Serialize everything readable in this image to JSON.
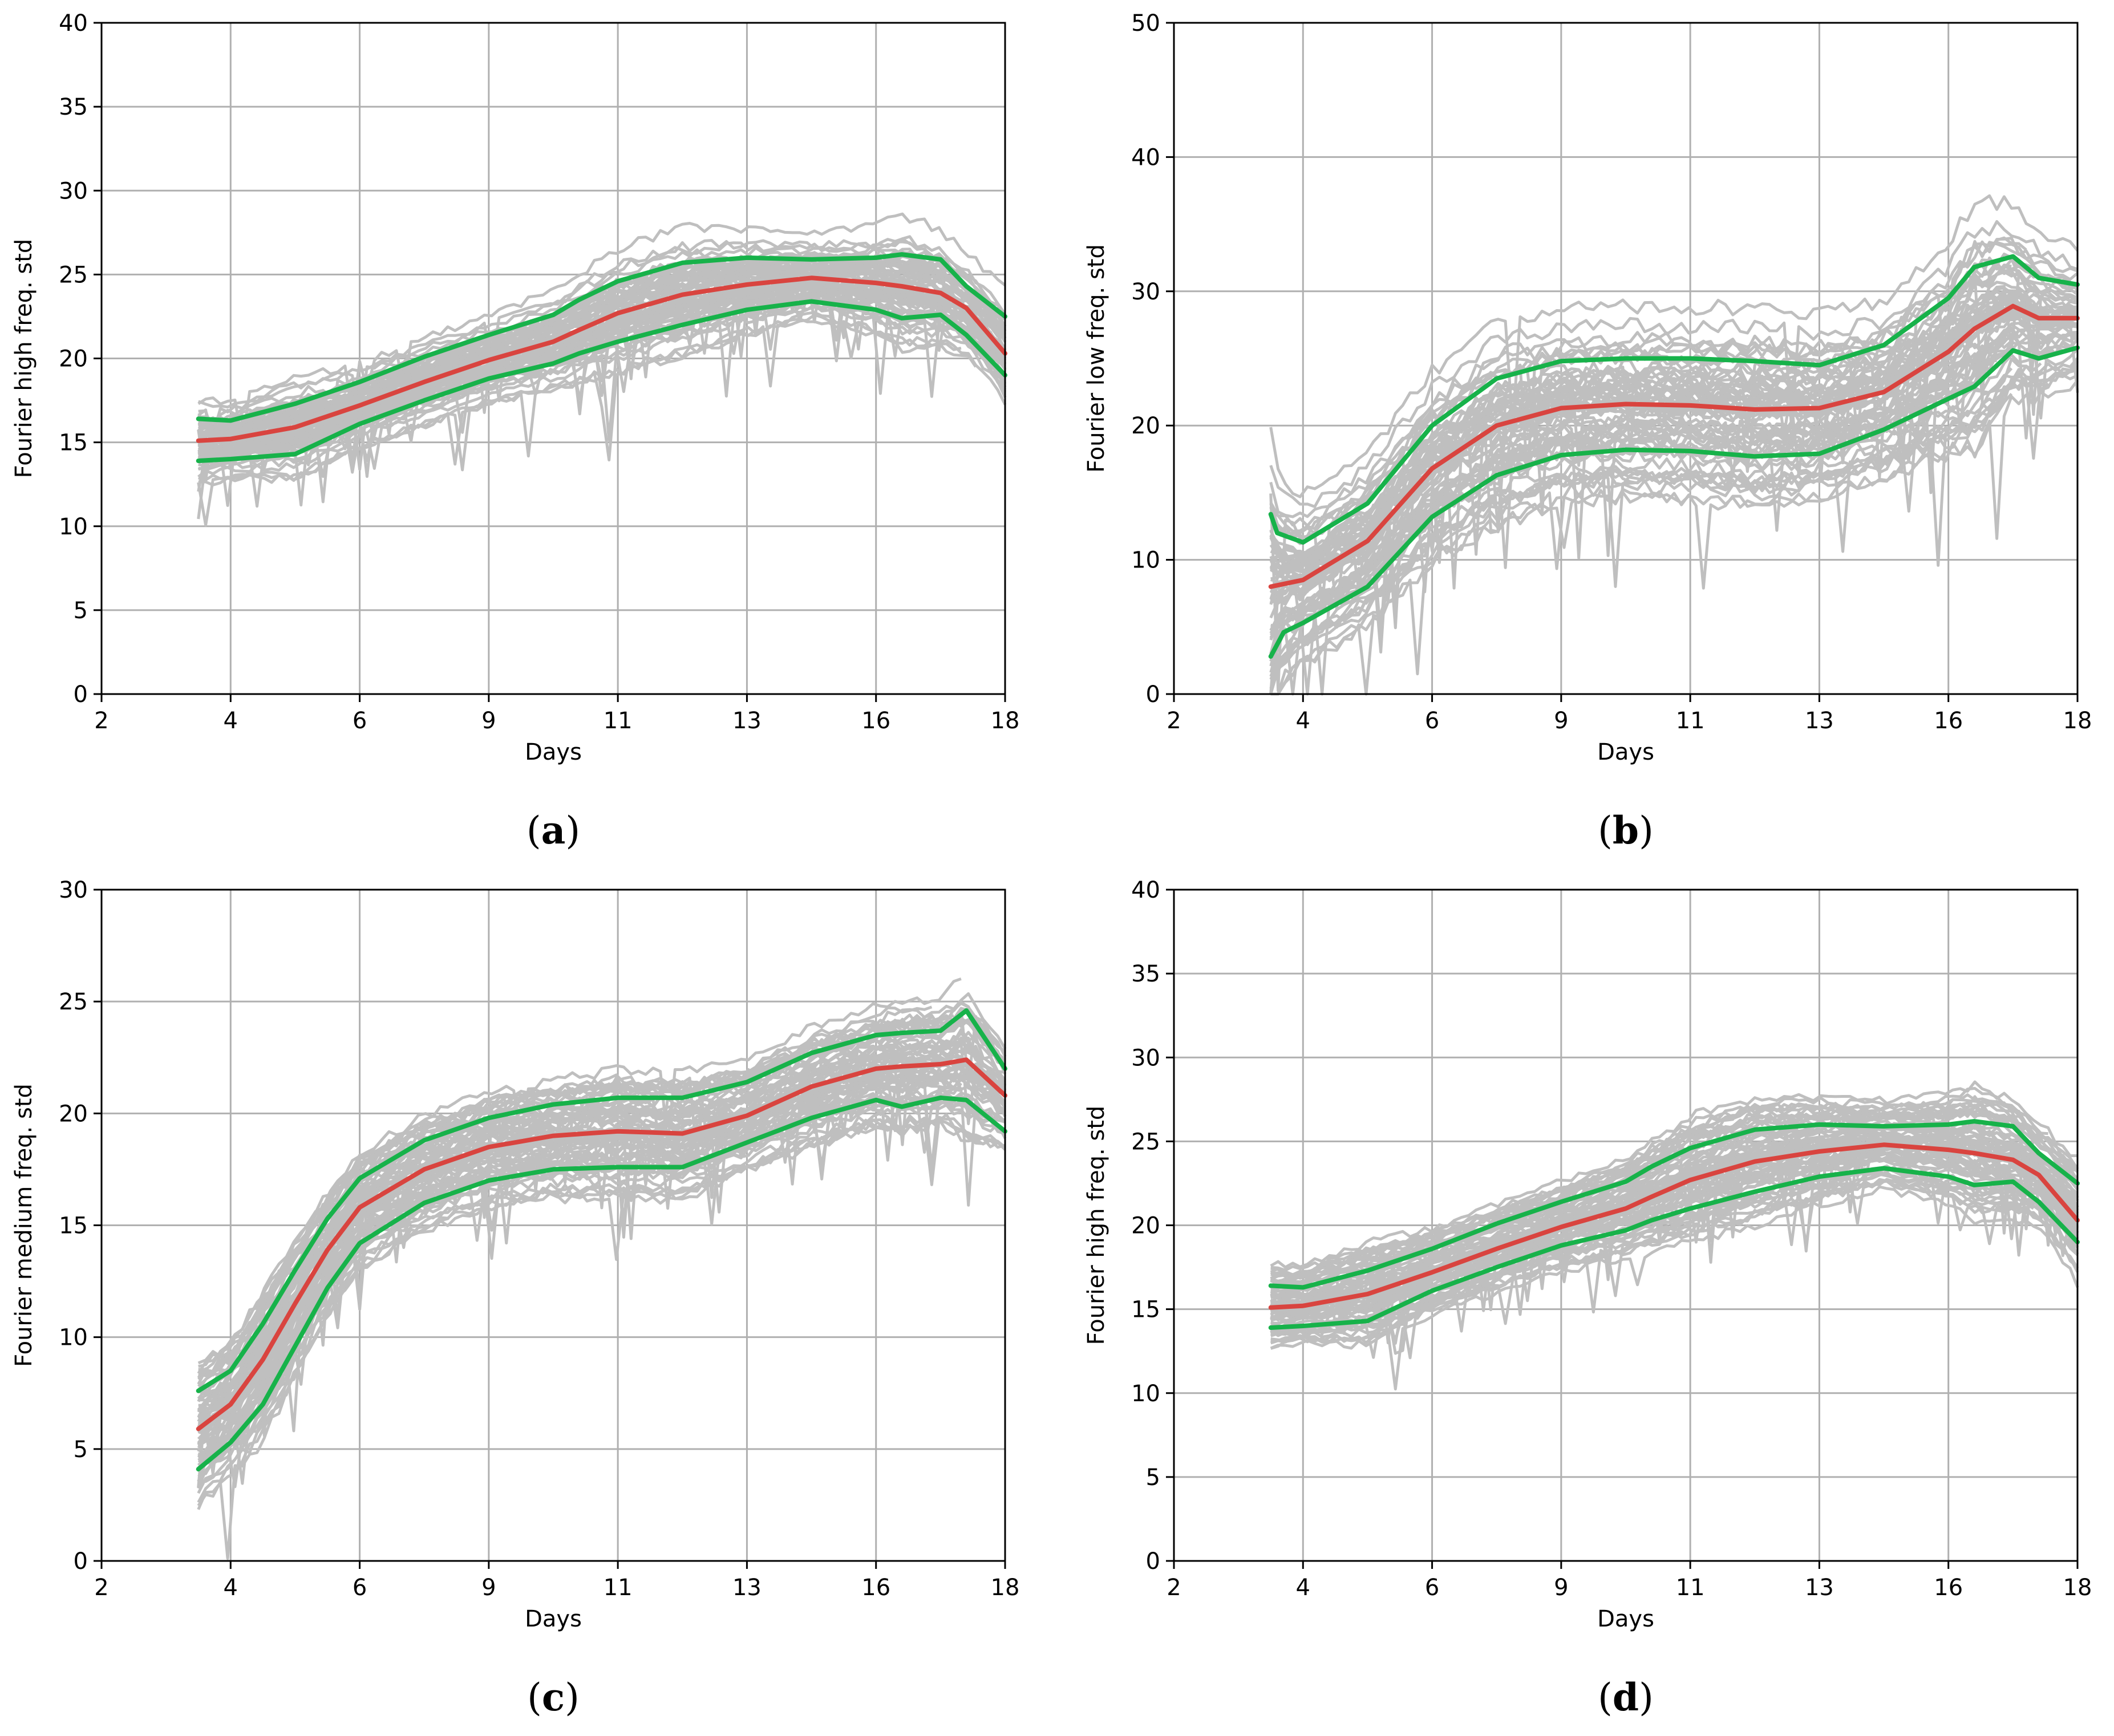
{
  "colors": {
    "bundle": "#bfbfbf",
    "median": "#d9443f",
    "band": "#17b24a",
    "grid": "#b0b0b0",
    "axis": "#000000"
  },
  "chart_data": [
    {
      "panel": "a",
      "caption_letter": "a",
      "type": "line",
      "title": "",
      "xlabel": "Days",
      "ylabel": "Fourier high freq. std",
      "xticks": [
        "2",
        "4",
        "6",
        "9",
        "11",
        "13",
        "16",
        "18"
      ],
      "xlim": [
        0,
        7
      ],
      "yticks": [
        0,
        5,
        10,
        15,
        20,
        25,
        30,
        35,
        40
      ],
      "ylim": [
        0,
        40
      ],
      "grid": true,
      "series": [
        {
          "name": "upper",
          "color": "#17b24a",
          "x": [
            0.75,
            1.0,
            1.5,
            2.0,
            2.5,
            3.0,
            3.5,
            3.7,
            4.0,
            4.5,
            5.0,
            5.5,
            6.0,
            6.2,
            6.5,
            6.7,
            7.0
          ],
          "y": [
            16.4,
            16.3,
            17.3,
            18.6,
            20.1,
            21.4,
            22.6,
            23.5,
            24.6,
            25.7,
            26.0,
            25.9,
            26.0,
            26.2,
            25.9,
            24.3,
            22.5
          ]
        },
        {
          "name": "median",
          "color": "#d9443f",
          "x": [
            0.75,
            1.0,
            1.5,
            2.0,
            2.5,
            3.0,
            3.5,
            3.7,
            4.0,
            4.5,
            5.0,
            5.5,
            6.0,
            6.2,
            6.5,
            6.7,
            7.0
          ],
          "y": [
            15.1,
            15.2,
            15.9,
            17.2,
            18.6,
            19.9,
            21.0,
            21.7,
            22.7,
            23.8,
            24.4,
            24.8,
            24.5,
            24.3,
            23.9,
            23.0,
            20.3
          ]
        },
        {
          "name": "lower",
          "color": "#17b24a",
          "x": [
            0.75,
            1.0,
            1.5,
            2.0,
            2.5,
            3.0,
            3.5,
            3.7,
            4.0,
            4.5,
            5.0,
            5.5,
            6.0,
            6.2,
            6.5,
            6.7,
            7.0
          ],
          "y": [
            13.9,
            14.0,
            14.3,
            16.1,
            17.5,
            18.8,
            19.7,
            20.3,
            21.0,
            22.0,
            22.9,
            23.4,
            22.9,
            22.4,
            22.6,
            21.4,
            19.0
          ]
        }
      ]
    },
    {
      "panel": "b",
      "caption_letter": "b",
      "type": "line",
      "title": "",
      "xlabel": "Days",
      "ylabel": "Fourier low freq. std",
      "xticks": [
        "2",
        "4",
        "6",
        "9",
        "11",
        "13",
        "16",
        "18"
      ],
      "xlim": [
        0,
        7
      ],
      "yticks": [
        0,
        10,
        20,
        30,
        40,
        50
      ],
      "ylim": [
        0,
        50
      ],
      "grid": true,
      "series": [
        {
          "name": "upper",
          "color": "#17b24a",
          "x": [
            0.75,
            0.8,
            1.0,
            1.5,
            2.0,
            2.5,
            3.0,
            3.5,
            4.0,
            4.5,
            5.0,
            5.5,
            6.0,
            6.2,
            6.5,
            6.7,
            7.0
          ],
          "y": [
            13.4,
            12.0,
            11.3,
            14.2,
            20.0,
            23.5,
            24.8,
            25.0,
            25.0,
            24.8,
            24.5,
            26.0,
            29.5,
            31.8,
            32.6,
            31.0,
            30.5
          ]
        },
        {
          "name": "median",
          "color": "#d9443f",
          "x": [
            0.75,
            1.0,
            1.5,
            2.0,
            2.5,
            3.0,
            3.5,
            4.0,
            4.5,
            5.0,
            5.5,
            6.0,
            6.2,
            6.5,
            6.7,
            7.0
          ],
          "y": [
            8.0,
            8.5,
            11.4,
            16.8,
            20.0,
            21.3,
            21.6,
            21.5,
            21.2,
            21.3,
            22.5,
            25.5,
            27.2,
            28.9,
            28.0,
            28.0
          ]
        },
        {
          "name": "lower",
          "color": "#17b24a",
          "x": [
            0.75,
            0.85,
            1.0,
            1.5,
            2.0,
            2.5,
            3.0,
            3.5,
            4.0,
            4.5,
            5.0,
            5.5,
            6.0,
            6.2,
            6.5,
            6.7,
            7.0
          ],
          "y": [
            2.8,
            4.6,
            5.3,
            8.0,
            13.2,
            16.3,
            17.8,
            18.2,
            18.1,
            17.7,
            17.9,
            19.7,
            22.0,
            22.9,
            25.6,
            25.0,
            25.8
          ]
        }
      ]
    },
    {
      "panel": "c",
      "caption_letter": "c",
      "type": "line",
      "title": "",
      "xlabel": "Days",
      "ylabel": "Fourier medium freq. std",
      "xticks": [
        "2",
        "4",
        "6",
        "9",
        "11",
        "13",
        "16",
        "18"
      ],
      "xlim": [
        0,
        7
      ],
      "yticks": [
        0,
        5,
        10,
        15,
        20,
        25,
        30
      ],
      "ylim": [
        0,
        30
      ],
      "grid": true,
      "series": [
        {
          "name": "upper",
          "color": "#17b24a",
          "x": [
            0.75,
            1.0,
            1.25,
            1.5,
            1.75,
            2.0,
            2.5,
            3.0,
            3.5,
            4.0,
            4.5,
            5.0,
            5.5,
            6.0,
            6.2,
            6.5,
            6.7,
            7.0
          ],
          "y": [
            7.6,
            8.5,
            10.6,
            13.0,
            15.3,
            17.1,
            18.8,
            19.8,
            20.4,
            20.7,
            20.7,
            21.4,
            22.7,
            23.5,
            23.6,
            23.7,
            24.6,
            22.0
          ]
        },
        {
          "name": "median",
          "color": "#d9443f",
          "x": [
            0.75,
            1.0,
            1.25,
            1.5,
            1.75,
            2.0,
            2.5,
            3.0,
            3.5,
            4.0,
            4.5,
            5.0,
            5.5,
            6.0,
            6.2,
            6.5,
            6.7,
            7.0
          ],
          "y": [
            5.9,
            7.0,
            9.0,
            11.5,
            13.9,
            15.8,
            17.5,
            18.5,
            19.0,
            19.2,
            19.1,
            19.9,
            21.2,
            22.0,
            22.1,
            22.2,
            22.4,
            20.8
          ]
        },
        {
          "name": "lower",
          "color": "#17b24a",
          "x": [
            0.75,
            1.0,
            1.25,
            1.5,
            1.75,
            2.0,
            2.5,
            3.0,
            3.5,
            4.0,
            4.5,
            5.0,
            5.5,
            6.0,
            6.2,
            6.5,
            6.7,
            7.0
          ],
          "y": [
            4.1,
            5.3,
            7.0,
            9.6,
            12.2,
            14.2,
            16.0,
            17.0,
            17.5,
            17.6,
            17.6,
            18.7,
            19.8,
            20.6,
            20.3,
            20.7,
            20.6,
            19.2
          ]
        }
      ]
    },
    {
      "panel": "d",
      "caption_letter": "d",
      "type": "line",
      "title": "",
      "xlabel": "Days",
      "ylabel": "Fourier high freq. std",
      "xticks": [
        "2",
        "4",
        "6",
        "9",
        "11",
        "13",
        "16",
        "18"
      ],
      "xlim": [
        0,
        7
      ],
      "yticks": [
        0,
        5,
        10,
        15,
        20,
        25,
        30,
        35,
        40
      ],
      "ylim": [
        0,
        40
      ],
      "grid": true,
      "series": [
        {
          "name": "upper",
          "color": "#17b24a",
          "x": [
            0.75,
            1.0,
            1.5,
            2.0,
            2.5,
            3.0,
            3.5,
            3.7,
            4.0,
            4.5,
            5.0,
            5.5,
            6.0,
            6.2,
            6.5,
            6.7,
            7.0
          ],
          "y": [
            16.4,
            16.3,
            17.3,
            18.6,
            20.1,
            21.4,
            22.6,
            23.5,
            24.6,
            25.7,
            26.0,
            25.9,
            26.0,
            26.2,
            25.9,
            24.3,
            22.5
          ]
        },
        {
          "name": "median",
          "color": "#d9443f",
          "x": [
            0.75,
            1.0,
            1.5,
            2.0,
            2.5,
            3.0,
            3.5,
            3.7,
            4.0,
            4.5,
            5.0,
            5.5,
            6.0,
            6.2,
            6.5,
            6.7,
            7.0
          ],
          "y": [
            15.1,
            15.2,
            15.9,
            17.2,
            18.6,
            19.9,
            21.0,
            21.7,
            22.7,
            23.8,
            24.4,
            24.8,
            24.5,
            24.3,
            23.9,
            23.0,
            20.3
          ]
        },
        {
          "name": "lower",
          "color": "#17b24a",
          "x": [
            0.75,
            1.0,
            1.5,
            2.0,
            2.5,
            3.0,
            3.5,
            3.7,
            4.0,
            4.5,
            5.0,
            5.5,
            6.0,
            6.2,
            6.5,
            6.7,
            7.0
          ],
          "y": [
            13.9,
            14.0,
            14.3,
            16.1,
            17.5,
            18.8,
            19.7,
            20.3,
            21.0,
            22.0,
            22.9,
            23.4,
            22.9,
            22.4,
            22.6,
            21.4,
            19.0
          ]
        }
      ]
    }
  ]
}
